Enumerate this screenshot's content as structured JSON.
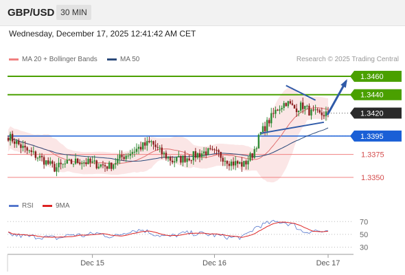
{
  "header": {
    "symbol": "GBP/USD",
    "timeframe": "30 MIN"
  },
  "datetime": "Wednesday, December 17, 2025 12:41:42 AM CET",
  "legend": {
    "ma20_label": "MA 20 + Bollinger Bands",
    "ma50_label": "MA 50",
    "rsi_label": "RSI",
    "ma9_label": "9MA",
    "research": "Research © 2025 Trading Central"
  },
  "colors": {
    "up": "#2e8b34",
    "down": "#8a1f1f",
    "band": "#f7c8c8",
    "ma20": "#e07070",
    "ma50": "#2b4a7a",
    "resistance": "#4aa000",
    "pivot": "#1a5fd6",
    "support": "#f08080",
    "last": "#2a2a2a",
    "rsi": "#5577cc",
    "rsi_ma": "#dd2222",
    "arrow": "#2f5aa8"
  },
  "chart_data": [
    {
      "type": "candlestick",
      "x_ticks": [
        "Dec 15",
        "Dec 16",
        "Dec 17"
      ],
      "ylim": [
        1.3335,
        1.3472
      ],
      "levels": [
        {
          "label": "1.3460",
          "value": 1.346,
          "kind": "resistance"
        },
        {
          "label": "1.3440",
          "value": 1.344,
          "kind": "resistance"
        },
        {
          "label": "1.3420",
          "value": 1.342,
          "kind": "last"
        },
        {
          "label": "1.3395",
          "value": 1.3395,
          "kind": "pivot"
        },
        {
          "label": "1.3375",
          "value": 1.3375,
          "kind": "support"
        },
        {
          "label": "1.3350",
          "value": 1.335,
          "kind": "support"
        }
      ],
      "last_price": 1.342,
      "anchors": [
        [
          0,
          1.3395
        ],
        [
          8,
          1.338
        ],
        [
          16,
          1.337
        ],
        [
          22,
          1.336
        ],
        [
          28,
          1.3365
        ],
        [
          34,
          1.3368
        ],
        [
          40,
          1.3365
        ],
        [
          48,
          1.3362
        ],
        [
          54,
          1.3372
        ],
        [
          62,
          1.3382
        ],
        [
          68,
          1.3388
        ],
        [
          72,
          1.3378
        ],
        [
          78,
          1.3368
        ],
        [
          86,
          1.3372
        ],
        [
          94,
          1.3378
        ],
        [
          100,
          1.3375
        ],
        [
          106,
          1.3366
        ],
        [
          112,
          1.3364
        ],
        [
          116,
          1.3375
        ],
        [
          120,
          1.3398
        ],
        [
          124,
          1.3412
        ],
        [
          128,
          1.3425
        ],
        [
          132,
          1.3432
        ],
        [
          136,
          1.3425
        ],
        [
          140,
          1.3428
        ],
        [
          144,
          1.342
        ],
        [
          148,
          1.3418
        ],
        [
          152,
          1.342
        ]
      ],
      "trendlines": [
        {
          "from": [
            132,
            1.345
          ],
          "to": [
            146,
            1.3434
          ]
        },
        {
          "from": [
            120,
            1.3398
          ],
          "to": [
            150,
            1.341
          ]
        }
      ],
      "forecast": {
        "from": [
          151,
          1.3418
        ],
        "to": [
          158,
          1.3455
        ]
      }
    },
    {
      "type": "line",
      "name": "RSI",
      "ylim": [
        22,
        80
      ],
      "y_ticks": [
        70,
        50,
        30
      ],
      "anchors": [
        [
          0,
          50
        ],
        [
          8,
          47
        ],
        [
          16,
          46
        ],
        [
          24,
          44
        ],
        [
          30,
          50
        ],
        [
          36,
          48
        ],
        [
          42,
          52
        ],
        [
          50,
          46
        ],
        [
          58,
          56
        ],
        [
          64,
          57
        ],
        [
          70,
          50
        ],
        [
          76,
          46
        ],
        [
          84,
          52
        ],
        [
          92,
          51
        ],
        [
          100,
          48
        ],
        [
          106,
          45
        ],
        [
          112,
          46
        ],
        [
          118,
          62
        ],
        [
          124,
          68
        ],
        [
          130,
          70
        ],
        [
          136,
          64
        ],
        [
          140,
          54
        ],
        [
          146,
          56
        ],
        [
          152,
          52
        ]
      ]
    }
  ]
}
